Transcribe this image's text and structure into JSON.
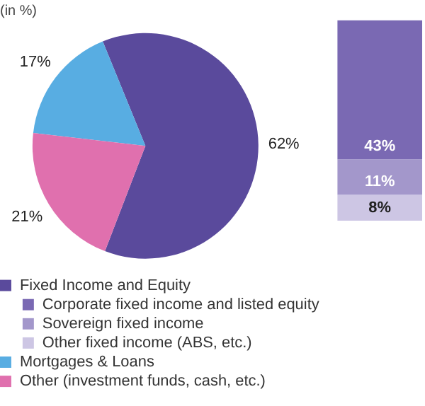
{
  "chart_data": [
    {
      "type": "pie",
      "title": "(in %)",
      "categories": [
        "Fixed Income and Equity",
        "Mortgages & Loans",
        "Other (investment funds, cash, etc.)"
      ],
      "values": [
        62,
        17,
        21
      ],
      "colors": [
        "#5a4a9c",
        "#58ade2",
        "#e070ae"
      ],
      "value_labels": [
        "62%",
        "17%",
        "21%"
      ],
      "legend": "bottom"
    },
    {
      "type": "bar",
      "stacked": true,
      "categories": [
        null
      ],
      "legend": "bottom",
      "series": [
        {
          "name": "Other fixed income (ABS, etc.)",
          "color": "#cdc6e4",
          "values": [
            8
          ],
          "value_labels": [
            "8%"
          ]
        },
        {
          "name": "Sovereign fixed income",
          "color": "#a397cb",
          "values": [
            11
          ],
          "value_labels": [
            "11%"
          ]
        },
        {
          "name": "Corporate fixed income and listed equity",
          "color": "#7a69b3",
          "values": [
            43
          ],
          "value_labels": [
            "43%"
          ]
        }
      ]
    }
  ]
}
